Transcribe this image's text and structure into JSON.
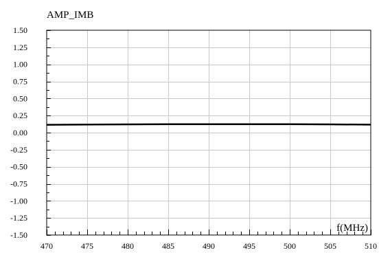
{
  "chart_data": {
    "type": "line",
    "title": "AMP_IMB",
    "xlabel": "f(MHz)",
    "ylabel": "",
    "xlim": [
      470,
      510
    ],
    "ylim": [
      -1.5,
      1.5
    ],
    "x_ticks": [
      470,
      475,
      480,
      485,
      490,
      495,
      500,
      505,
      510
    ],
    "y_ticks": [
      1.5,
      1.25,
      1.0,
      0.75,
      0.5,
      0.25,
      0.0,
      -0.25,
      -0.5,
      -0.75,
      -1.0,
      -1.25,
      -1.5
    ],
    "x_tick_labels": [
      "470",
      "475",
      "480",
      "485",
      "490",
      "495",
      "500",
      "505",
      "510"
    ],
    "y_tick_labels": [
      "1.50",
      "1.25",
      "1.00",
      "0.75",
      "0.50",
      "0.25",
      "0.00",
      "-0.25",
      "-0.50",
      "-0.75",
      "-1.00",
      "-1.25",
      "-1.50"
    ],
    "grid": true,
    "series": [
      {
        "color": "#000000",
        "x": [
          470,
          475,
          480,
          485,
          490,
          495,
          500,
          505,
          510
        ],
        "y": [
          0.115,
          0.118,
          0.121,
          0.123,
          0.124,
          0.124,
          0.123,
          0.121,
          0.117
        ]
      }
    ]
  }
}
